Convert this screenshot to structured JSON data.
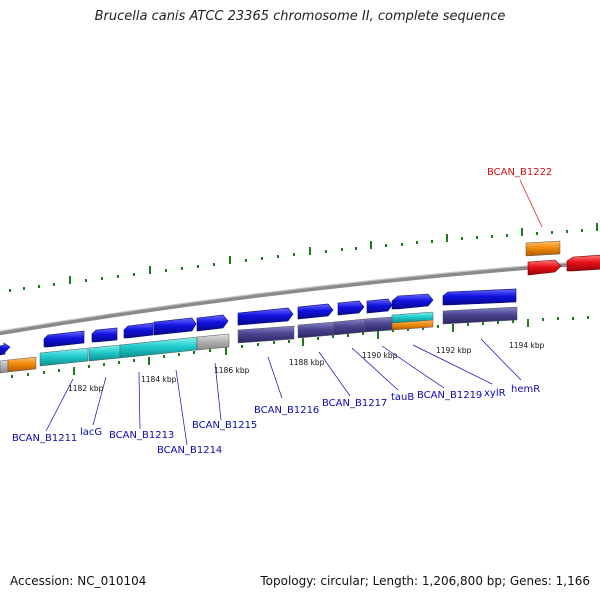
{
  "header": {
    "title": "Brucella canis ATCC 23365 chromosome II, complete sequence"
  },
  "footer": {
    "accession": "Accession: NC_010104",
    "summary": "Topology: circular; Length: 1,206,800 bp; Genes: 1,166"
  },
  "genome_map": {
    "tick_labels": [
      "1182 kbp",
      "1184 kbp",
      "1186 kbp",
      "1188 kbp",
      "1190 kbp",
      "1192 kbp",
      "1194 kbp"
    ],
    "gene_labels": [
      "BCAN_B1211",
      "lacG",
      "BCAN_B1213",
      "BCAN_B1214",
      "BCAN_B1215",
      "BCAN_B1216",
      "BCAN_B1217",
      "tauB",
      "BCAN_B1219",
      "xylR",
      "hemR",
      "BCAN_B1222"
    ],
    "colors": {
      "forward_cds": "#1212e0",
      "cog_purple": "#4a4590",
      "cog_cyan": "#22cccc",
      "cog_gray": "#b4b4b4",
      "cog_orange": "#f28c0c",
      "highlight_red": "#e8121a",
      "label_blue": "#0a0ab4",
      "label_red": "#d01010",
      "tick_green": "#1c7a1c",
      "backbone": "#8a8a8a"
    }
  }
}
